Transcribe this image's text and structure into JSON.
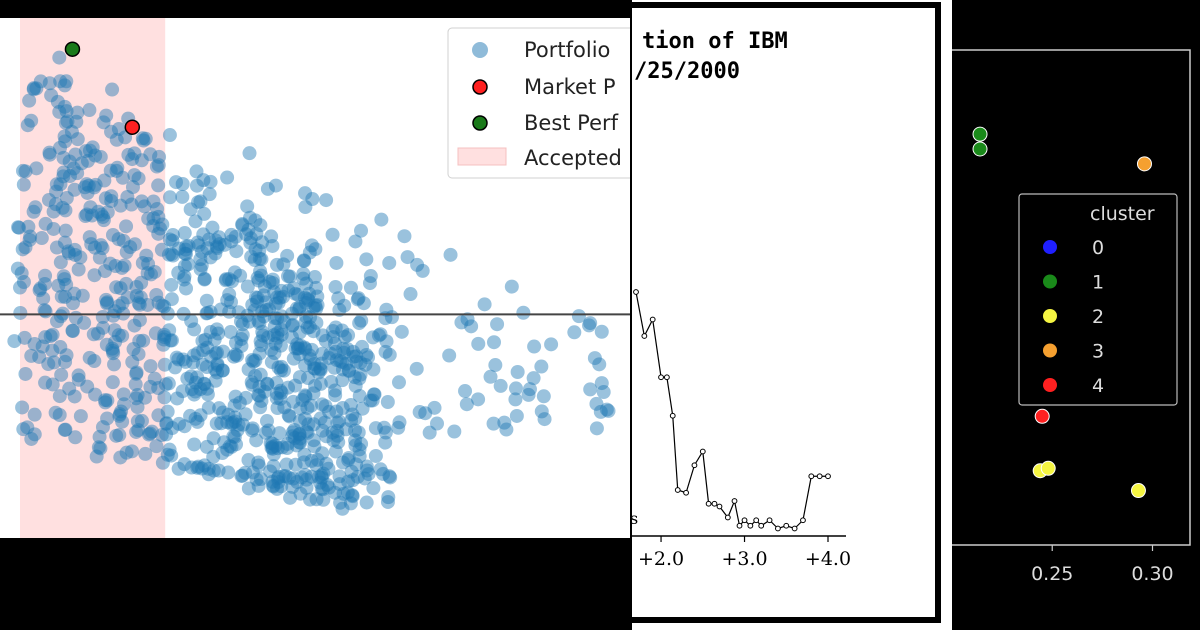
{
  "chart_data": [
    {
      "type": "scatter",
      "title": "",
      "xlabel": "",
      "ylabel": "",
      "grid": false,
      "legend_position": "top-right",
      "colors": {
        "portfolio": "#1f77b4",
        "market": "#ff2020",
        "best": "#1a7a1a",
        "accepted": "#ffe0e0",
        "hline": "#444444"
      },
      "x_range": [
        0.0,
        1.0
      ],
      "y_range": [
        0.0,
        1.0
      ],
      "accepted_region": [
        0.0,
        0.24
      ],
      "hline_y": 0.43,
      "legend": [
        {
          "key": "portfolio",
          "label": "Portfolio"
        },
        {
          "key": "market",
          "label": "Market P"
        },
        {
          "key": "best",
          "label": "Best Perf"
        },
        {
          "key": "accepted",
          "label": "Accepted"
        }
      ],
      "highlight_points": [
        {
          "key": "market",
          "x": 0.21,
          "y": 0.79
        },
        {
          "key": "best",
          "x": 0.115,
          "y": 0.94
        }
      ]
    },
    {
      "type": "line",
      "title": "tion of IBM",
      "subtitle": "/25/2000",
      "xlabel": "",
      "ylabel": "",
      "x_tick_labels": [
        "+2.0",
        "+3.0",
        "+4.0"
      ],
      "x_tick_values": [
        2.0,
        3.0,
        4.0
      ],
      "y_range": [
        0,
        1
      ],
      "x": [
        1.7,
        1.8,
        1.9,
        2.0,
        2.07,
        2.14,
        2.2,
        2.3,
        2.4,
        2.5,
        2.57,
        2.64,
        2.7,
        2.8,
        2.88,
        2.94,
        3.0,
        3.07,
        3.14,
        3.2,
        3.3,
        3.4,
        3.5,
        3.6,
        3.7,
        3.8,
        3.9,
        4.0
      ],
      "y": [
        0.88,
        0.72,
        0.78,
        0.57,
        0.57,
        0.43,
        0.16,
        0.15,
        0.25,
        0.3,
        0.11,
        0.11,
        0.1,
        0.06,
        0.12,
        0.03,
        0.05,
        0.03,
        0.05,
        0.03,
        0.05,
        0.02,
        0.03,
        0.02,
        0.05,
        0.21,
        0.21,
        0.21
      ],
      "cut_label": "s"
    },
    {
      "type": "scatter",
      "title": "",
      "xlabel": "",
      "ylabel": "",
      "x_tick_labels": [
        "0.25",
        "0.30"
      ],
      "x_tick_values": [
        0.25,
        0.3
      ],
      "x_range": [
        0.21,
        0.315
      ],
      "y_range": [
        0.0,
        1.0
      ],
      "legend_title": "cluster",
      "legend_position": "center-right",
      "clusters": [
        {
          "label": "0",
          "color": "#1f1fff"
        },
        {
          "label": "1",
          "color": "#1a8a1a"
        },
        {
          "label": "2",
          "color": "#f5f542"
        },
        {
          "label": "3",
          "color": "#f5a030"
        },
        {
          "label": "4",
          "color": "#ff2020"
        }
      ],
      "points": [
        {
          "cluster": 1,
          "x": 0.214,
          "y": 0.83
        },
        {
          "cluster": 1,
          "x": 0.214,
          "y": 0.8
        },
        {
          "cluster": 3,
          "x": 0.296,
          "y": 0.77
        },
        {
          "cluster": 4,
          "x": 0.245,
          "y": 0.26
        },
        {
          "cluster": 2,
          "x": 0.244,
          "y": 0.15
        },
        {
          "cluster": 2,
          "x": 0.248,
          "y": 0.155
        },
        {
          "cluster": 2,
          "x": 0.293,
          "y": 0.11
        }
      ]
    }
  ]
}
